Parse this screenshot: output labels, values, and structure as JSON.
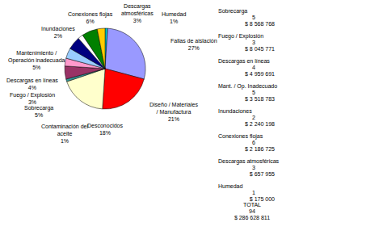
{
  "chart_data": {
    "type": "pie",
    "categories": [
      "Humedad",
      "Fallas de aislación",
      "Diseño / Materiales / Manufactura",
      "Desconocidos",
      "Contaminación del aceite",
      "Sobrecarga",
      "Fuego / Explosión",
      "Descargas en líneas",
      "Mantenimiento / Operación inadecuada",
      "Inundaciones",
      "Conexiones flojas",
      "Descargas atmosféricas"
    ],
    "values": [
      1,
      27,
      21,
      18,
      1,
      5,
      3,
      4,
      5,
      2,
      6,
      3
    ],
    "value_labels": [
      "1%",
      "27%",
      "21%",
      "18%",
      "1%",
      "5%",
      "3%",
      "4%",
      "5%",
      "2%",
      "6%",
      "3%"
    ],
    "colors": [
      "#00cccc",
      "#9999ff",
      "#ff0000",
      "#ffffcc",
      "#339999",
      "#993366",
      "#ff99cc",
      "#99ccff",
      "#000080",
      "#ffffff",
      "#008000",
      "#ffcc00"
    ],
    "data_labels": true
  },
  "table": {
    "rows": [
      {
        "label": "Sobrecarga",
        "count": 5,
        "amount": "$ 8 568 768"
      },
      {
        "label": "Fuego / Explosión",
        "count": 3,
        "amount": "$ 8 045 771"
      },
      {
        "label": "Descargas en líneas",
        "count": 4,
        "amount": "$ 4 959 691"
      },
      {
        "label": "Mant. / Op. Inadecuado",
        "count": 5,
        "amount": "$ 3 518 783"
      },
      {
        "label": "Inundaciones",
        "count": 2,
        "amount": "$ 2 240 198"
      },
      {
        "label": "Conexiones flojas",
        "count": 6,
        "amount": "$ 2 186 725"
      },
      {
        "label": "Descargas atmosféricas",
        "count": 3,
        "amount": "$ 657 955"
      },
      {
        "label": "Humedad",
        "count": 1,
        "amount": "$ 175 000"
      }
    ],
    "total": {
      "label": "TOTAL",
      "count": 94,
      "amount": "$ 286 628 811"
    }
  }
}
